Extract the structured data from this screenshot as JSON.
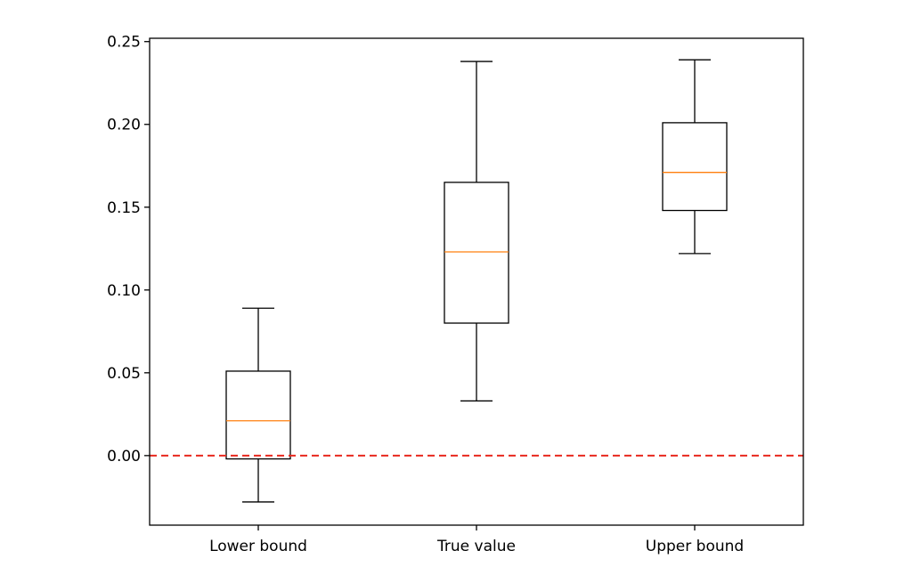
{
  "chart_data": {
    "type": "boxplot",
    "title": "",
    "xlabel": "",
    "ylabel": "",
    "ylim": [
      -0.042,
      0.252
    ],
    "yticks": [
      0.25,
      0.2,
      0.15,
      0.1,
      0.05,
      0.0
    ],
    "ytick_labels": [
      "0.25",
      "0.20",
      "0.15",
      "0.10",
      "0.05",
      "0.00"
    ],
    "categories": [
      "Lower bound",
      "True value",
      "Upper bound"
    ],
    "boxes": [
      {
        "label": "Lower bound",
        "whisker_low": -0.028,
        "q1": -0.002,
        "median": 0.021,
        "q3": 0.051,
        "whisker_high": 0.089
      },
      {
        "label": "True value",
        "whisker_low": 0.033,
        "q1": 0.08,
        "median": 0.123,
        "q3": 0.165,
        "whisker_high": 0.238
      },
      {
        "label": "Upper bound",
        "whisker_low": 0.122,
        "q1": 0.148,
        "median": 0.171,
        "q3": 0.201,
        "whisker_high": 0.239
      }
    ],
    "reference_line": {
      "y": 0.0,
      "style": "dashed",
      "color": "#e8281e"
    },
    "colors": {
      "box": "#000000",
      "median": "#ff7f0e",
      "reference": "#e8281e"
    },
    "grid": false,
    "legend": "none"
  }
}
